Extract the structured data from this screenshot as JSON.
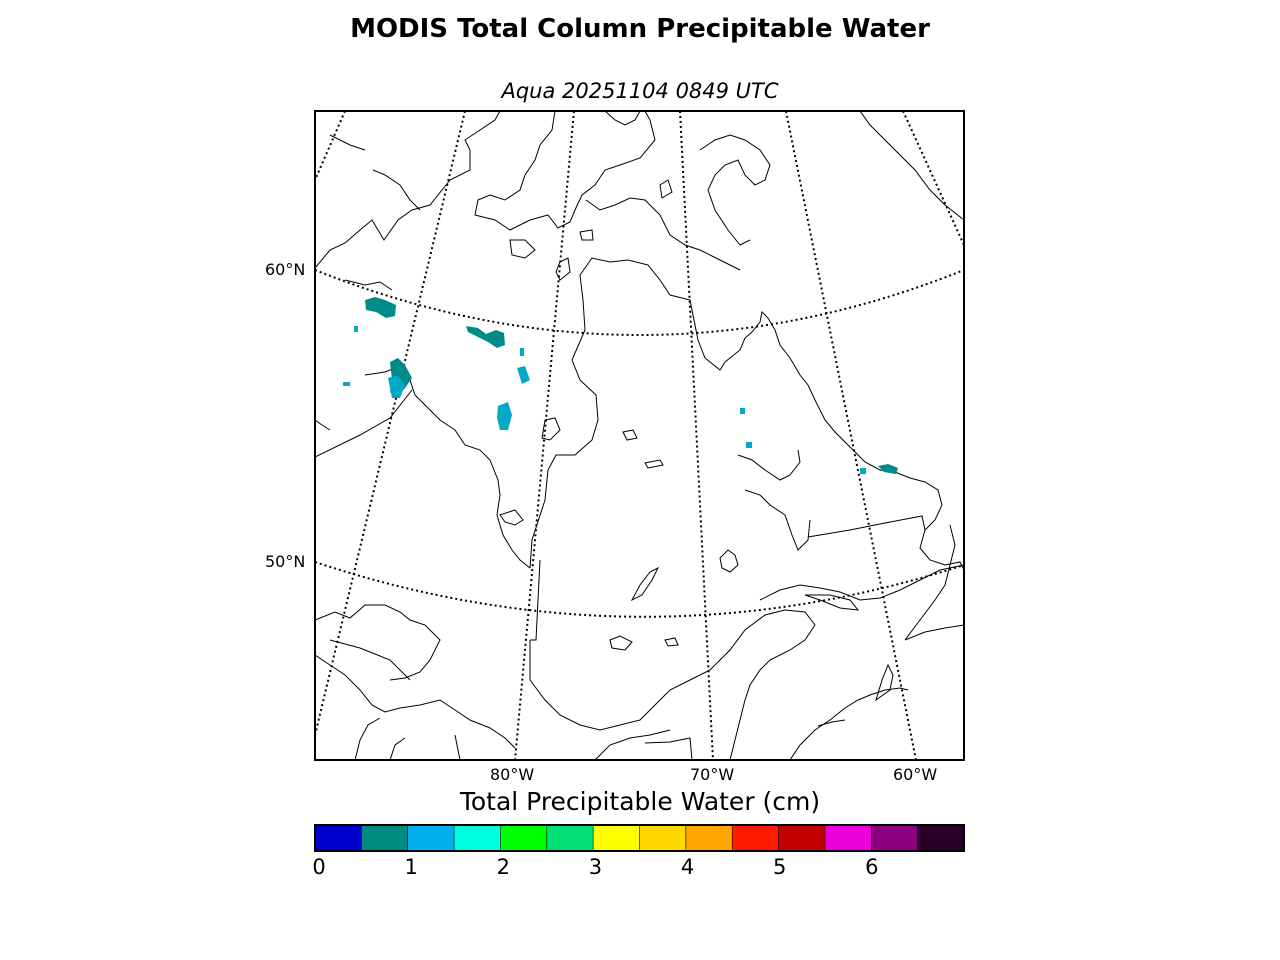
{
  "title": "MODIS Total Column Precipitable Water",
  "subtitle": "Aqua 20251104 0849 UTC",
  "map": {
    "lat_labels": [
      "60°N",
      "50°N"
    ],
    "lon_labels": [
      "80°W",
      "70°W",
      "60°W"
    ],
    "data_colors": [
      "#008b8b",
      "#00a9c8"
    ]
  },
  "colorbar": {
    "title": "Total Precipitable Water (cm)",
    "ticks": [
      "0",
      "1",
      "2",
      "3",
      "4",
      "5",
      "6"
    ],
    "tick_values": [
      0,
      1,
      2,
      3,
      4,
      5,
      6
    ],
    "min": 0,
    "max": 7,
    "colors": [
      "#0000cd",
      "#008b80",
      "#00b0ee",
      "#00ffe0",
      "#00ff00",
      "#00e077",
      "#ffff00",
      "#ffd700",
      "#ffa500",
      "#ff1a00",
      "#c20000",
      "#ee00dd",
      "#8b0080",
      "#2a0028"
    ]
  }
}
